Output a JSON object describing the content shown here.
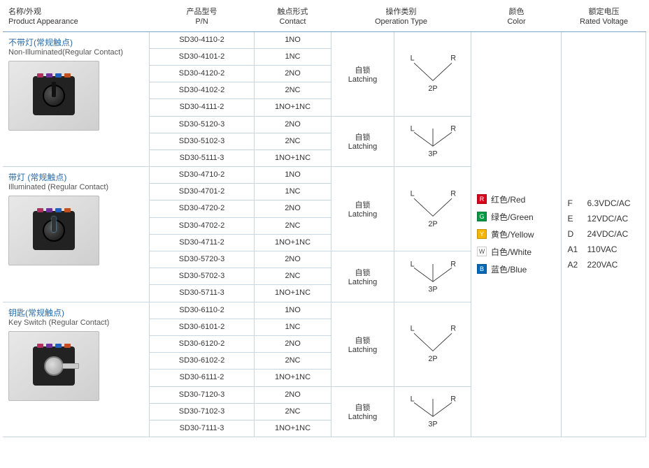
{
  "headers": {
    "appearance_cn": "名称/外观",
    "appearance_en": "Product Appearance",
    "pn_cn": "产品型号",
    "pn_en": "P/N",
    "contact_cn": "触点形式",
    "contact_en": "Contact",
    "operation_cn": "操作类别",
    "operation_en": "Operation Type",
    "color_cn": "颜色",
    "color_en": "Color",
    "voltage_cn": "额定电压",
    "voltage_en": "Rated Voltage"
  },
  "operation": {
    "cn": "自锁",
    "en": "Latching"
  },
  "diagram_labels": {
    "L": "L",
    "R": "R",
    "p2": "2P",
    "p3": "3P"
  },
  "product_terminal_colors": [
    "#b03060",
    "#7030a0",
    "#2060c0",
    "#c05020"
  ],
  "groups": [
    {
      "title_cn": "不带灯(常规触点)",
      "title_en": "Non-Illuminated(Regular Contact) ",
      "variant": "plain",
      "sections": [
        {
          "positions": "2P",
          "rows": [
            {
              "pn": "SD30-4110-2",
              "contact": "1NO"
            },
            {
              "pn": "SD30-4101-2",
              "contact": "1NC"
            },
            {
              "pn": "SD30-4120-2",
              "contact": "2NO"
            },
            {
              "pn": "SD30-4102-2",
              "contact": "2NC"
            },
            {
              "pn": "SD30-4111-2",
              "contact": "1NO+1NC"
            }
          ]
        },
        {
          "positions": "3P",
          "rows": [
            {
              "pn": "SD30-5120-3",
              "contact": "2NO"
            },
            {
              "pn": "SD30-5102-3",
              "contact": "2NC"
            },
            {
              "pn": "SD30-5111-3",
              "contact": "1NO+1NC"
            }
          ]
        }
      ]
    },
    {
      "title_cn": "带灯 (常规触点)",
      "title_en": "Illuminated (Regular Contact)",
      "variant": "illum",
      "sections": [
        {
          "positions": "2P",
          "rows": [
            {
              "pn": "SD30-4710-2",
              "contact": "1NO"
            },
            {
              "pn": "SD30-4701-2",
              "contact": "1NC"
            },
            {
              "pn": "SD30-4720-2",
              "contact": "2NO"
            },
            {
              "pn": "SD30-4702-2",
              "contact": "2NC"
            },
            {
              "pn": "SD30-4711-2",
              "contact": "1NO+1NC"
            }
          ]
        },
        {
          "positions": "3P",
          "rows": [
            {
              "pn": "SD30-5720-3",
              "contact": "2NO"
            },
            {
              "pn": "SD30-5702-3",
              "contact": "2NC"
            },
            {
              "pn": "SD30-5711-3",
              "contact": "1NO+1NC"
            }
          ]
        }
      ]
    },
    {
      "title_cn": "钥匙(常规触点)",
      "title_en": "Key Switch (Regular Contact)",
      "variant": "key",
      "sections": [
        {
          "positions": "2P",
          "rows": [
            {
              "pn": "SD30-6110-2",
              "contact": "1NO"
            },
            {
              "pn": "SD30-6101-2",
              "contact": "1NC"
            },
            {
              "pn": "SD30-6120-2",
              "contact": "2NO"
            },
            {
              "pn": "SD30-6102-2",
              "contact": "2NC"
            },
            {
              "pn": "SD30-6111-2",
              "contact": "1NO+1NC"
            }
          ]
        },
        {
          "positions": "3P",
          "rows": [
            {
              "pn": "SD30-7120-3",
              "contact": "2NO"
            },
            {
              "pn": "SD30-7102-3",
              "contact": "2NC"
            },
            {
              "pn": "SD30-7111-3",
              "contact": "1NO+1NC"
            }
          ]
        }
      ]
    }
  ],
  "colors": [
    {
      "code": "R",
      "label": "红色/Red",
      "hex": "#d9001b"
    },
    {
      "code": "G",
      "label": "绿色/Green",
      "hex": "#009944"
    },
    {
      "code": "Y",
      "label": "黄色/Yellow",
      "hex": "#f8b500"
    },
    {
      "code": "W",
      "label": "白色/White",
      "hex": "#ffffff"
    },
    {
      "code": "B",
      "label": "蓝色/Blue",
      "hex": "#0068b7"
    }
  ],
  "voltages": [
    {
      "code": "F",
      "label": "6.3VDC/AC"
    },
    {
      "code": "E",
      "label": "12VDC/AC"
    },
    {
      "code": "D",
      "label": "24VDC/AC"
    },
    {
      "code": "A1",
      "label": "110VAC"
    },
    {
      "code": "A2",
      "label": "220VAC"
    }
  ],
  "style": {
    "header_border": "#7aa5c5",
    "cell_border": "#c8d6e2",
    "title_color": "#2a6aa6",
    "diag_stroke": "#333",
    "diag_stroke_width": 1
  }
}
